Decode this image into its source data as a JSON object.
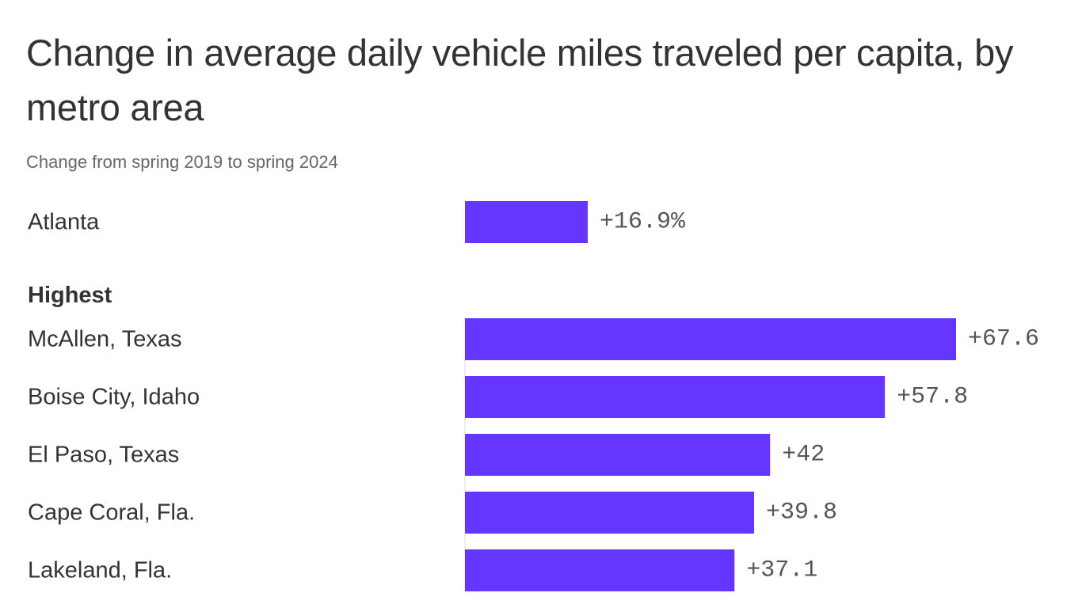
{
  "title": "Change in average daily vehicle miles traveled per capita, by metro area",
  "subtitle": "Change from spring 2019 to spring 2024",
  "colors": {
    "bar": "#6436FF",
    "axis": "#DDDDDD"
  },
  "chart_data": {
    "type": "bar",
    "orientation": "horizontal",
    "title": "Change in average daily vehicle miles traveled per capita, by metro area",
    "subtitle": "Change from spring 2019 to spring 2024",
    "xlabel": "",
    "ylabel": "",
    "xlim": [
      0,
      67.6
    ],
    "grid": false,
    "groups": [
      {
        "name": "",
        "categories": [
          "Atlanta"
        ],
        "values": [
          16.9
        ],
        "labels": [
          "+16.9%"
        ]
      },
      {
        "name": "Highest",
        "categories": [
          "McAllen, Texas",
          "Boise City, Idaho",
          "El Paso, Texas",
          "Cape Coral, Fla.",
          "Lakeland, Fla."
        ],
        "values": [
          67.6,
          57.8,
          42,
          39.8,
          37.1
        ],
        "labels": [
          "+67.6",
          "+57.8",
          "+42",
          "+39.8",
          "+37.1"
        ]
      }
    ]
  }
}
